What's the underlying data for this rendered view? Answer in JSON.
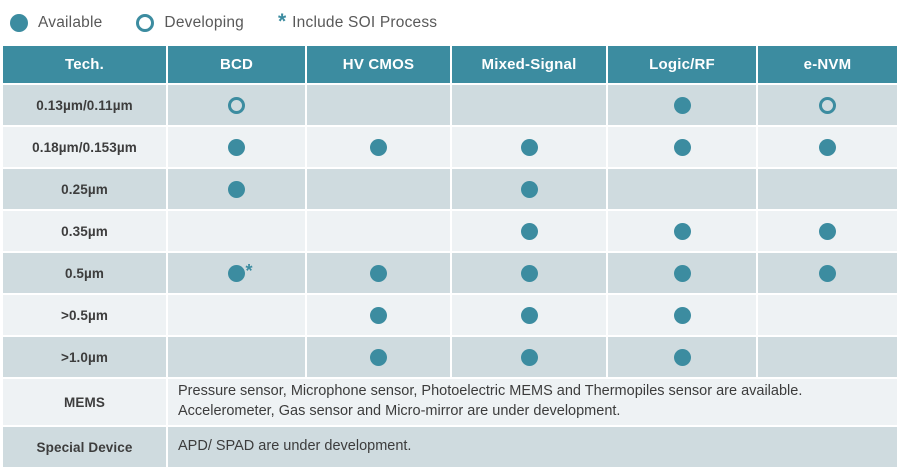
{
  "colors": {
    "accent": "#3c8ca0",
    "row_dark": "#cfdbdf",
    "row_light": "#eef2f4",
    "header_text": "#ffffff",
    "body_text": "#3d3d3d",
    "legend_text": "#595959"
  },
  "legend": {
    "items": [
      {
        "key": "available",
        "symbol": "filled-dot",
        "label": "Available"
      },
      {
        "key": "developing",
        "symbol": "hollow-dot",
        "label": "Developing"
      },
      {
        "key": "soi",
        "symbol": "asterisk",
        "label": "Include SOI Process",
        "asterisk_glyph": "*"
      }
    ]
  },
  "chart_data": {
    "type": "table",
    "title": "Process technology availability matrix",
    "columns": [
      "Tech.",
      "BCD",
      "HV CMOS",
      "Mixed-Signal",
      "Logic/RF",
      "e-NVM"
    ],
    "status_legend": {
      "available": "filled dot",
      "developing": "hollow dot",
      "available-soi": "filled dot with asterisk (Include SOI Process)"
    },
    "rows": [
      {
        "tech": "0.13µm/0.11µm",
        "cells": [
          "developing",
          "",
          "",
          "available",
          "developing"
        ]
      },
      {
        "tech": "0.18µm/0.153µm",
        "cells": [
          "available",
          "available",
          "available",
          "available",
          "available"
        ]
      },
      {
        "tech": "0.25µm",
        "cells": [
          "available",
          "",
          "available",
          "",
          ""
        ]
      },
      {
        "tech": "0.35µm",
        "cells": [
          "",
          "",
          "available",
          "available",
          "available"
        ]
      },
      {
        "tech": "0.5µm",
        "cells": [
          "available-soi",
          "available",
          "available",
          "available",
          "available"
        ]
      },
      {
        "tech": ">0.5µm",
        "cells": [
          "",
          "available",
          "available",
          "available",
          ""
        ]
      },
      {
        "tech": ">1.0µm",
        "cells": [
          "",
          "available",
          "available",
          "available",
          ""
        ]
      }
    ],
    "text_rows": [
      {
        "tech": "MEMS",
        "lines": [
          "Pressure sensor, Microphone sensor, Photoelectric MEMS and Thermopiles sensor are available.",
          "Accelerometer, Gas sensor and Micro-mirror are under development."
        ]
      },
      {
        "tech": "Special Device",
        "lines": [
          "APD/ SPAD are under development."
        ]
      }
    ]
  }
}
